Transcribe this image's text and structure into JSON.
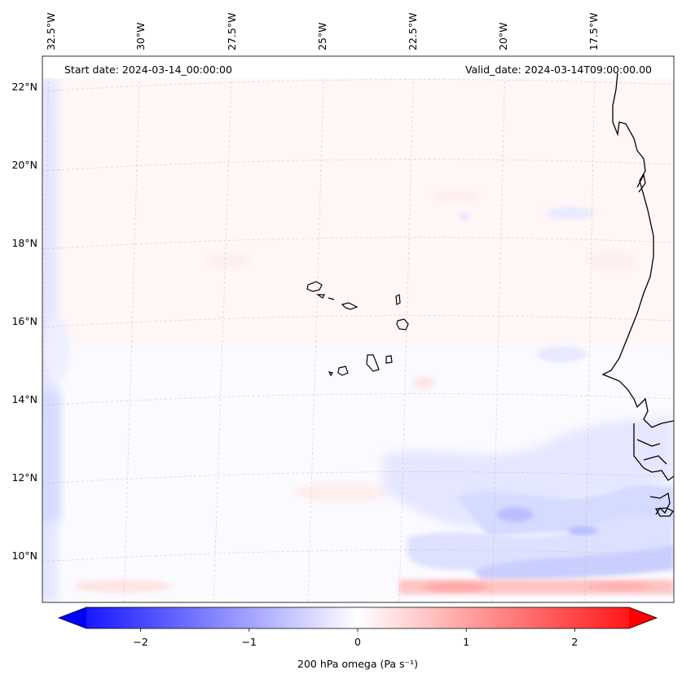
{
  "header": {
    "start_date": "Start date: 2024-03-14_00:00:00",
    "valid_date": "Valid_date: 2024-03-14T09:00:00.00"
  },
  "map": {
    "lon_labels": [
      "32.5°W",
      "30°W",
      "27.5°W",
      "25°W",
      "22.5°W",
      "20°W",
      "17.5°W"
    ],
    "lat_labels": [
      "22°N",
      "20°N",
      "18°N",
      "16°N",
      "14°N",
      "12°N",
      "10°N"
    ],
    "gridline_color": "#c9a9a0"
  },
  "colorbar": {
    "label": "200 hPa omega (Pa s⁻¹)",
    "min": -2.5,
    "max": 2.5,
    "ticks": [
      "−2",
      "−1",
      "0",
      "1",
      "2"
    ],
    "tick_values": [
      -2,
      -1,
      0,
      1,
      2
    ],
    "low_color": "#0000ff",
    "mid_color": "#ffffff",
    "high_color": "#ff0000"
  }
}
